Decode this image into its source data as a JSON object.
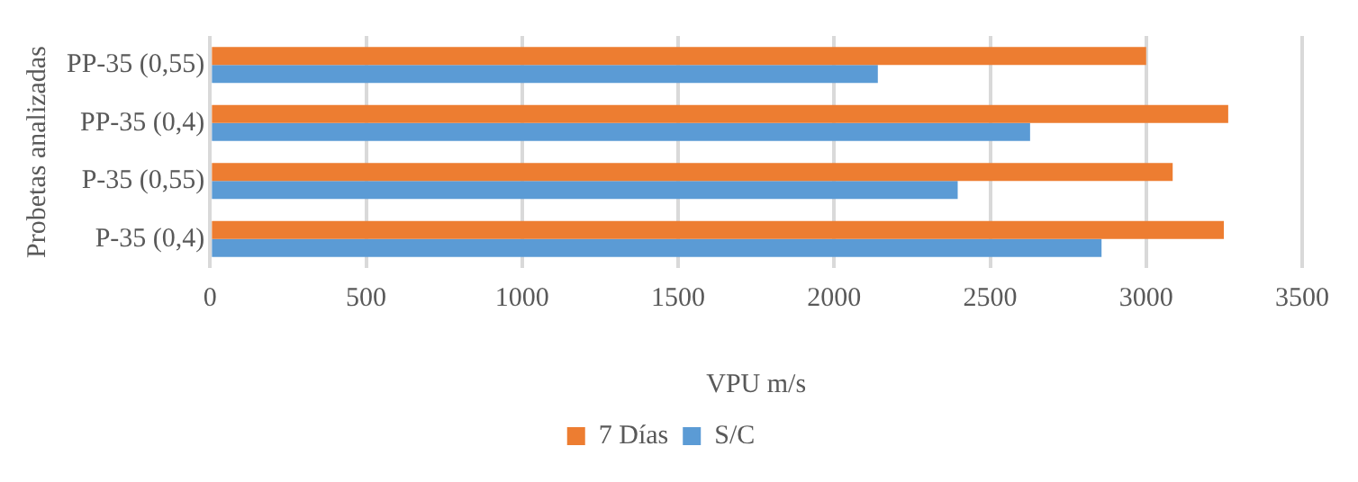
{
  "chart_data": {
    "type": "bar",
    "orientation": "horizontal",
    "xlabel": "VPU m/s",
    "ylabel": "Probetas analizadas",
    "categories": [
      "PP-35 (0,55)",
      "PP-35 (0,4)",
      "P-35 (0,55)",
      "P-35 (0,4)"
    ],
    "series": [
      {
        "name": "7 Días",
        "color": "#ed7d31",
        "values": [
          3000,
          3263,
          3085,
          3249
        ]
      },
      {
        "name": "S/C",
        "color": "#5b9bd5",
        "values": [
          2140,
          2628,
          2396,
          2857
        ]
      }
    ],
    "xlim": [
      0,
      3500
    ],
    "xticks": [
      0,
      500,
      1000,
      1500,
      2000,
      2500,
      3000,
      3500
    ],
    "grid": "x",
    "legend": "bottom"
  }
}
